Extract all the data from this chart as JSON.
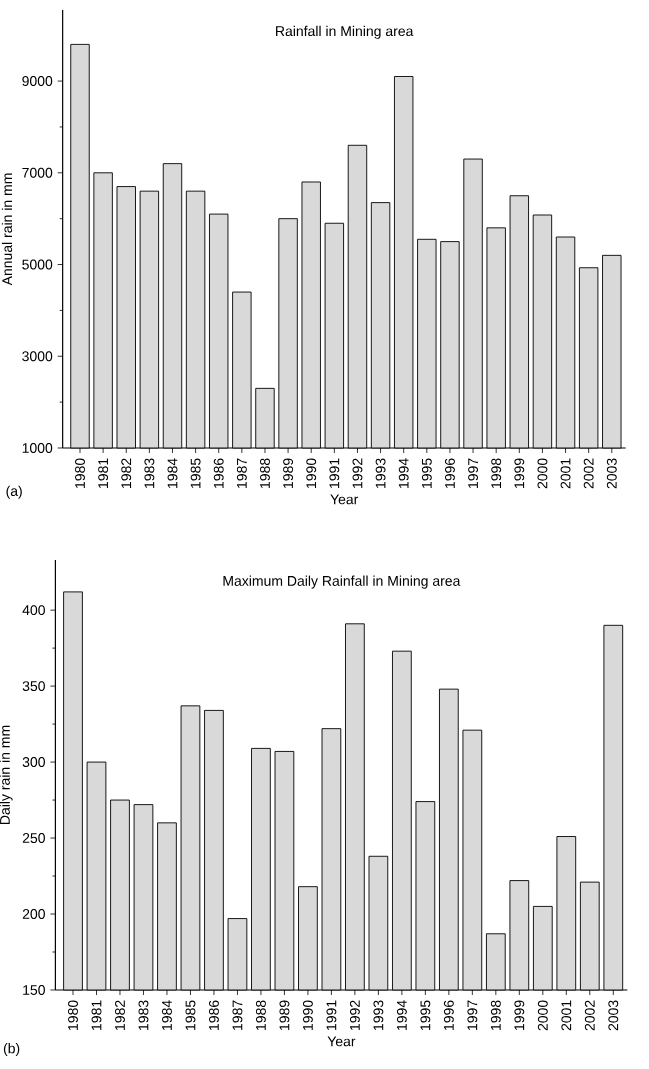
{
  "chart_data": [
    {
      "type": "bar",
      "title": "Rainfall in Mining area",
      "xlabel": "Year",
      "ylabel": "Annual rain in mm",
      "categories": [
        "1980",
        "1981",
        "1982",
        "1983",
        "1984",
        "1985",
        "1986",
        "1987",
        "1988",
        "1989",
        "1990",
        "1991",
        "1992",
        "1993",
        "1994",
        "1995",
        "1996",
        "1997",
        "1998",
        "1999",
        "2000",
        "2001",
        "2002",
        "2003"
      ],
      "values": [
        9800,
        7000,
        6700,
        6600,
        7200,
        6600,
        6100,
        4400,
        2300,
        6000,
        6800,
        5900,
        7600,
        6350,
        9100,
        5550,
        5500,
        7300,
        5800,
        6500,
        6080,
        5600,
        4930,
        5200
      ],
      "color": "#d9d9d9",
      "ylim": [
        1000,
        10550
      ],
      "yticks": [
        1000,
        3000,
        5000,
        7000,
        9000
      ],
      "annotations": [
        "(a)"
      ]
    },
    {
      "type": "bar",
      "title": "Maximum Daily Rainfall in Mining area",
      "xlabel": "Year",
      "ylabel": "Daily rain in mm",
      "categories": [
        "1980",
        "1981",
        "1982",
        "1983",
        "1984",
        "1985",
        "1986",
        "1987",
        "1988",
        "1989",
        "1990",
        "1991",
        "1992",
        "1993",
        "1994",
        "1995",
        "1996",
        "1997",
        "1998",
        "1999",
        "2000",
        "2001",
        "2002",
        "2003"
      ],
      "values": [
        412,
        300,
        275,
        272,
        260,
        337,
        334,
        197,
        309,
        307,
        218,
        322,
        391,
        238,
        373,
        274,
        348,
        321,
        187,
        222,
        205,
        251,
        221,
        390
      ],
      "color": "#d9d9d9",
      "ylim": [
        150,
        433
      ],
      "yticks": [
        150,
        200,
        250,
        300,
        350,
        400
      ],
      "annotations": [
        "(b)"
      ]
    }
  ]
}
